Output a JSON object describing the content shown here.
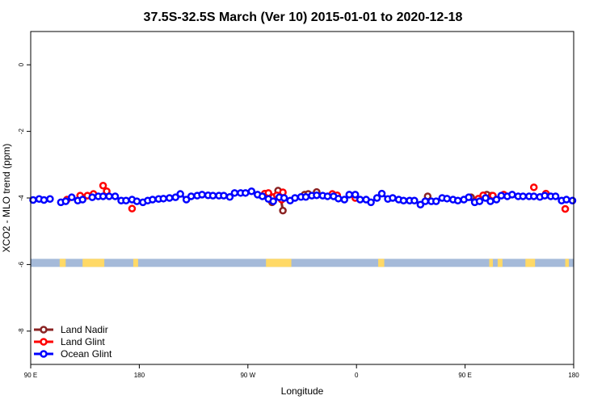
{
  "chart_data": {
    "type": "line",
    "title": "37.5S-32.5S March (Ver 10)   2015-01-01 to 2020-12-18",
    "xlabel": "Longitude",
    "ylabel": "XCO2 - MLO trend (ppm)",
    "x_ticks": [
      {
        "value": 90,
        "label": "90 E"
      },
      {
        "value": 180,
        "label": "180"
      },
      {
        "value": 270,
        "label": "90 W"
      },
      {
        "value": 360,
        "label": "0"
      },
      {
        "value": 450,
        "label": "90 E"
      },
      {
        "value": 540,
        "label": "180"
      }
    ],
    "y_ticks": [
      {
        "value": 0,
        "label": "0"
      },
      {
        "value": -2,
        "label": "-2"
      },
      {
        "value": -4,
        "label": "-4"
      },
      {
        "value": -6,
        "label": "-6"
      },
      {
        "value": -8,
        "label": "-8"
      }
    ],
    "xlim": [
      90,
      540
    ],
    "ylim": [
      -9.0,
      1.0
    ],
    "legend_position": "bottom-left",
    "series": [
      {
        "name": "Land Nadir",
        "color": "#8b2323",
        "points": [
          [
            288,
            -3.93
          ],
          [
            290,
            -4.13
          ],
          [
            292,
            -3.97
          ],
          [
            295,
            -3.78
          ],
          [
            297,
            -3.95
          ],
          [
            299,
            -4.38
          ],
          [
            317,
            -3.9
          ],
          [
            320,
            -3.88
          ],
          [
            327,
            -3.82
          ],
          [
            419,
            -3.95
          ],
          [
            455,
            -3.98
          ],
          [
            468,
            -3.9
          ],
          [
            472,
            -3.93
          ]
        ]
      },
      {
        "name": "Land Glint",
        "color": "#ff0000",
        "points": [
          [
            120,
            -4.05
          ],
          [
            131,
            -3.93
          ],
          [
            137,
            -3.93
          ],
          [
            142,
            -3.88
          ],
          [
            150,
            -3.63
          ],
          [
            153,
            -3.8
          ],
          [
            174,
            -4.32
          ],
          [
            284,
            -3.87
          ],
          [
            287,
            -3.85
          ],
          [
            291,
            -3.98
          ],
          [
            294,
            -3.92
          ],
          [
            298,
            -4.05
          ],
          [
            299,
            -3.83
          ],
          [
            340,
            -3.88
          ],
          [
            344,
            -3.92
          ],
          [
            359,
            -4.0
          ],
          [
            461,
            -4.02
          ],
          [
            465,
            -3.92
          ],
          [
            473,
            -3.93
          ],
          [
            482,
            -3.9
          ],
          [
            507,
            -3.68
          ],
          [
            517,
            -3.87
          ],
          [
            533,
            -4.33
          ]
        ]
      },
      {
        "name": "Ocean Glint",
        "color": "#0000ff",
        "points": [
          [
            92,
            -4.06
          ],
          [
            97,
            -4.03
          ],
          [
            101,
            -4.06
          ],
          [
            106,
            -4.03
          ],
          [
            115,
            -4.13
          ],
          [
            119,
            -4.1
          ],
          [
            124,
            -3.98
          ],
          [
            129,
            -4.08
          ],
          [
            133,
            -4.05
          ],
          [
            141,
            -3.98
          ],
          [
            146,
            -3.95
          ],
          [
            150,
            -3.95
          ],
          [
            155,
            -3.95
          ],
          [
            160,
            -3.95
          ],
          [
            165,
            -4.08
          ],
          [
            169,
            -4.08
          ],
          [
            174,
            -4.05
          ],
          [
            178,
            -4.1
          ],
          [
            183,
            -4.13
          ],
          [
            187,
            -4.08
          ],
          [
            191,
            -4.05
          ],
          [
            196,
            -4.03
          ],
          [
            200,
            -4.02
          ],
          [
            205,
            -4.0
          ],
          [
            210,
            -3.98
          ],
          [
            214,
            -3.88
          ],
          [
            219,
            -4.05
          ],
          [
            223,
            -3.95
          ],
          [
            228,
            -3.93
          ],
          [
            232,
            -3.9
          ],
          [
            237,
            -3.92
          ],
          [
            241,
            -3.93
          ],
          [
            246,
            -3.93
          ],
          [
            250,
            -3.93
          ],
          [
            255,
            -3.97
          ],
          [
            259,
            -3.85
          ],
          [
            264,
            -3.85
          ],
          [
            268,
            -3.85
          ],
          [
            273,
            -3.8
          ],
          [
            278,
            -3.9
          ],
          [
            282,
            -3.95
          ],
          [
            287,
            -4.03
          ],
          [
            291,
            -4.1
          ],
          [
            296,
            -3.98
          ],
          [
            300,
            -4.0
          ],
          [
            305,
            -4.08
          ],
          [
            309,
            -4.0
          ],
          [
            314,
            -3.97
          ],
          [
            318,
            -3.97
          ],
          [
            323,
            -3.93
          ],
          [
            327,
            -3.92
          ],
          [
            332,
            -3.93
          ],
          [
            336,
            -3.95
          ],
          [
            341,
            -3.95
          ],
          [
            345,
            -4.02
          ],
          [
            350,
            -4.05
          ],
          [
            354,
            -3.9
          ],
          [
            359,
            -3.9
          ],
          [
            363,
            -4.05
          ],
          [
            368,
            -4.05
          ],
          [
            372,
            -4.13
          ],
          [
            377,
            -4.0
          ],
          [
            381,
            -3.87
          ],
          [
            386,
            -4.03
          ],
          [
            390,
            -4.0
          ],
          [
            395,
            -4.05
          ],
          [
            399,
            -4.08
          ],
          [
            404,
            -4.08
          ],
          [
            408,
            -4.08
          ],
          [
            413,
            -4.2
          ],
          [
            417,
            -4.1
          ],
          [
            422,
            -4.1
          ],
          [
            426,
            -4.1
          ],
          [
            431,
            -4.0
          ],
          [
            435,
            -4.02
          ],
          [
            440,
            -4.05
          ],
          [
            444,
            -4.08
          ],
          [
            449,
            -4.05
          ],
          [
            453,
            -3.98
          ],
          [
            458,
            -4.13
          ],
          [
            462,
            -4.1
          ],
          [
            467,
            -4.0
          ],
          [
            471,
            -4.1
          ],
          [
            476,
            -4.05
          ],
          [
            480,
            -3.93
          ],
          [
            485,
            -3.95
          ],
          [
            489,
            -3.9
          ],
          [
            494,
            -3.95
          ],
          [
            498,
            -3.95
          ],
          [
            503,
            -3.95
          ],
          [
            507,
            -3.95
          ],
          [
            512,
            -3.97
          ],
          [
            516,
            -3.93
          ],
          [
            521,
            -3.95
          ],
          [
            525,
            -3.95
          ],
          [
            530,
            -4.08
          ],
          [
            534,
            -4.05
          ],
          [
            539,
            -4.08
          ]
        ]
      }
    ],
    "land_band": {
      "y": -5.95,
      "ocean_color": "#a5bad9",
      "land_color": "#ffd966",
      "land_spans": [
        [
          114,
          119
        ],
        [
          133,
          151
        ],
        [
          175,
          179
        ],
        [
          285,
          306
        ],
        [
          378,
          383
        ],
        [
          470,
          473
        ],
        [
          477,
          481
        ],
        [
          500,
          508
        ],
        [
          533,
          536
        ]
      ]
    }
  }
}
